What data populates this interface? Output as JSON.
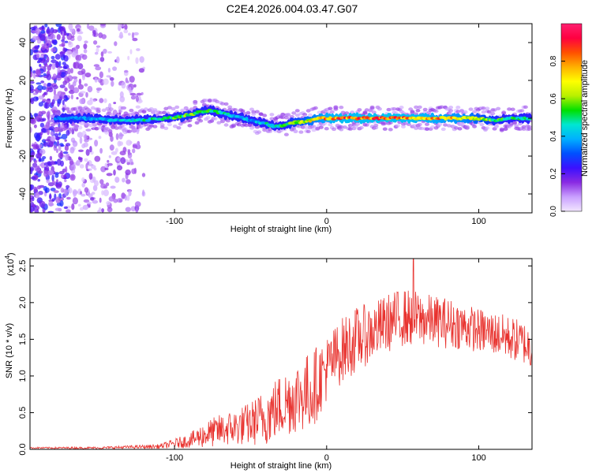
{
  "title": "C2E4.2026.004.03.47.G07",
  "chart_data": [
    {
      "type": "heatmap",
      "title": "C2E4.2026.004.03.47.G07",
      "xlabel": "Height of straight line (km)",
      "ylabel": "Frequency (Hz)",
      "xlim": [
        -195,
        135
      ],
      "ylim": [
        -50,
        50
      ],
      "x_ticks": [
        -100,
        0,
        100
      ],
      "x_tick_labels": [
        "-100",
        "0",
        "100"
      ],
      "y_ticks": [
        -40,
        -20,
        0,
        20,
        40
      ],
      "y_tick_labels": [
        "-40",
        "-20",
        "0",
        "20",
        "40"
      ],
      "colorbar": {
        "label": "Normalized spectral amplitude",
        "range": [
          0,
          1
        ],
        "ticks": [
          0.0,
          0.2,
          0.4,
          0.6,
          0.8
        ],
        "tick_labels": [
          "0.0",
          "0.2",
          "0.4",
          "0.6",
          "0.8"
        ],
        "colors": [
          "#f2e6ff",
          "#c9a0ff",
          "#8a2be2",
          "#3b10ff",
          "#0050ff",
          "#00b0ff",
          "#00e6d2",
          "#00e000",
          "#b8f000",
          "#ffff00",
          "#ffb000",
          "#ff5000",
          "#ff0040",
          "#ff2070"
        ]
      },
      "ridge": {
        "x": [
          -175,
          -160,
          -140,
          -120,
          -105,
          -95,
          -85,
          -75,
          -65,
          -60,
          -55,
          -50,
          -45,
          -40,
          -35,
          -30,
          -25,
          -20,
          -15,
          -10,
          -5,
          0,
          10,
          20,
          30,
          40,
          50,
          60,
          70,
          80,
          90,
          100,
          110,
          120,
          130
        ],
        "y": [
          0,
          0,
          -1,
          -1,
          0,
          1,
          3,
          4,
          2,
          1,
          0,
          -1,
          -2,
          -3,
          -4,
          -4,
          -3,
          -2,
          -2,
          -1,
          0,
          0,
          0,
          0,
          0,
          0,
          0,
          0,
          0,
          0,
          0,
          0,
          -1,
          0,
          0
        ],
        "amplitude": [
          0.35,
          0.4,
          0.45,
          0.5,
          0.55,
          0.6,
          0.6,
          0.55,
          0.5,
          0.45,
          0.45,
          0.4,
          0.45,
          0.5,
          0.5,
          0.55,
          0.6,
          0.65,
          0.7,
          0.75,
          0.8,
          0.85,
          0.9,
          0.9,
          0.9,
          0.92,
          0.9,
          0.88,
          0.85,
          0.82,
          0.8,
          0.7,
          0.6,
          0.55,
          0.5
        ]
      },
      "noise_region_x": [
        -195,
        -120
      ]
    },
    {
      "type": "line",
      "xlabel": "Height of straight line (km)",
      "ylabel": "SNR (10 * v/v)",
      "scale_label": "(x10",
      "scale_exp": "4",
      "scale_close": ")",
      "xlim": [
        -195,
        135
      ],
      "ylim": [
        0,
        2.6
      ],
      "x_ticks": [
        -100,
        0,
        100
      ],
      "x_tick_labels": [
        "-100",
        "0",
        "100"
      ],
      "y_ticks": [
        0.0,
        0.5,
        1.0,
        1.5,
        2.0,
        2.5
      ],
      "y_tick_labels": [
        "0.0",
        "0.5",
        "1.0",
        "1.5",
        "2.0",
        "2.5"
      ],
      "color": "#e8322e",
      "envelope": {
        "x": [
          -195,
          -150,
          -110,
          -90,
          -80,
          -70,
          -60,
          -50,
          -40,
          -30,
          -20,
          -10,
          -5,
          0,
          10,
          20,
          30,
          40,
          50,
          60,
          70,
          80,
          90,
          100,
          110,
          120,
          130,
          135
        ],
        "mean": [
          0.02,
          0.02,
          0.04,
          0.12,
          0.2,
          0.26,
          0.3,
          0.35,
          0.45,
          0.6,
          0.72,
          0.8,
          0.95,
          1.1,
          1.35,
          1.5,
          1.6,
          1.72,
          1.8,
          1.78,
          1.75,
          1.72,
          1.68,
          1.62,
          1.58,
          1.52,
          1.45,
          1.35
        ],
        "spread": [
          0.01,
          0.015,
          0.03,
          0.1,
          0.18,
          0.22,
          0.25,
          0.3,
          0.4,
          0.45,
          0.5,
          0.55,
          0.5,
          0.45,
          0.45,
          0.45,
          0.4,
          0.4,
          0.4,
          0.38,
          0.35,
          0.35,
          0.32,
          0.3,
          0.3,
          0.3,
          0.3,
          0.3
        ]
      },
      "peak": {
        "x": 57,
        "y": 2.6
      }
    }
  ]
}
